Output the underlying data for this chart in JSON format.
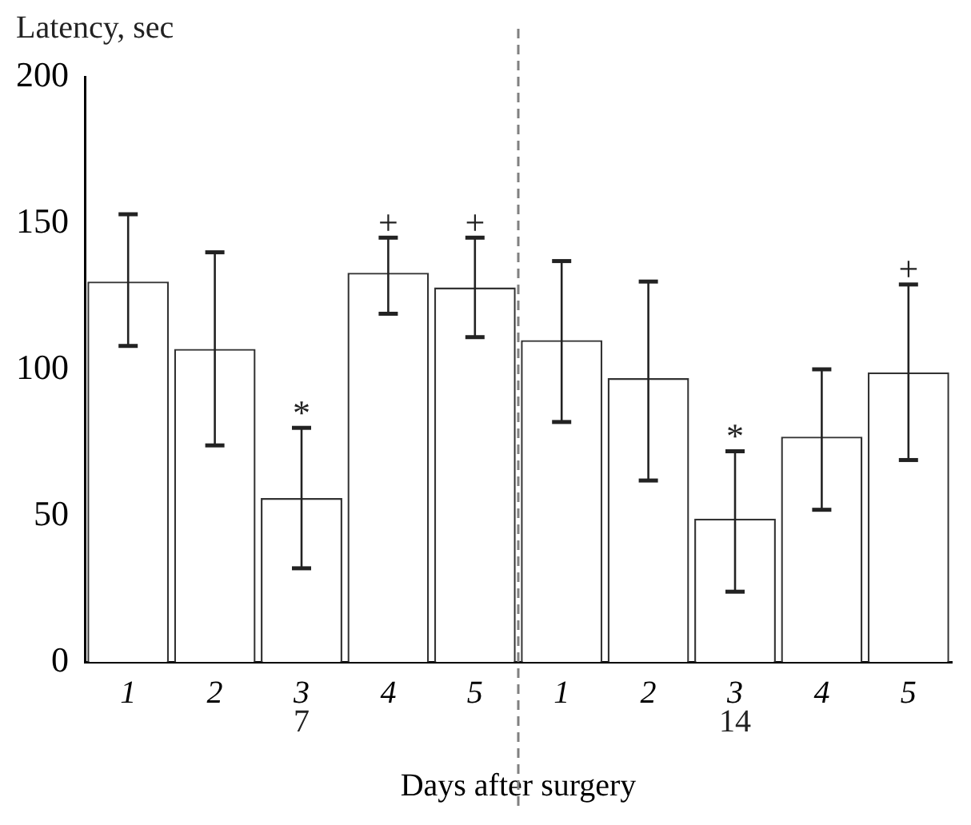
{
  "chart_data": {
    "type": "bar",
    "categories": [
      "1",
      "2",
      "3",
      "4",
      "5",
      "1",
      "2",
      "3",
      "4",
      "5"
    ],
    "values": [
      130,
      107,
      56,
      133,
      128,
      110,
      97,
      49,
      77,
      99
    ],
    "errors": [
      [
        108,
        153
      ],
      [
        74,
        140
      ],
      [
        32,
        80
      ],
      [
        119,
        145
      ],
      [
        111,
        145
      ],
      [
        82,
        137
      ],
      [
        62,
        130
      ],
      [
        24,
        72
      ],
      [
        52,
        100
      ],
      [
        69,
        129
      ]
    ],
    "value_labels": [
      null,
      null,
      "*",
      "+",
      "+",
      null,
      null,
      "*",
      null,
      "+"
    ],
    "color": "#ffffff",
    "ylim": [
      0,
      200
    ],
    "yticks": [
      0,
      50,
      100,
      150,
      200
    ],
    "ylabel": "Latency, sec",
    "xlabel": "Days after surgery",
    "annotations": [
      "7",
      "14"
    ],
    "grid": false,
    "legend": false
  }
}
